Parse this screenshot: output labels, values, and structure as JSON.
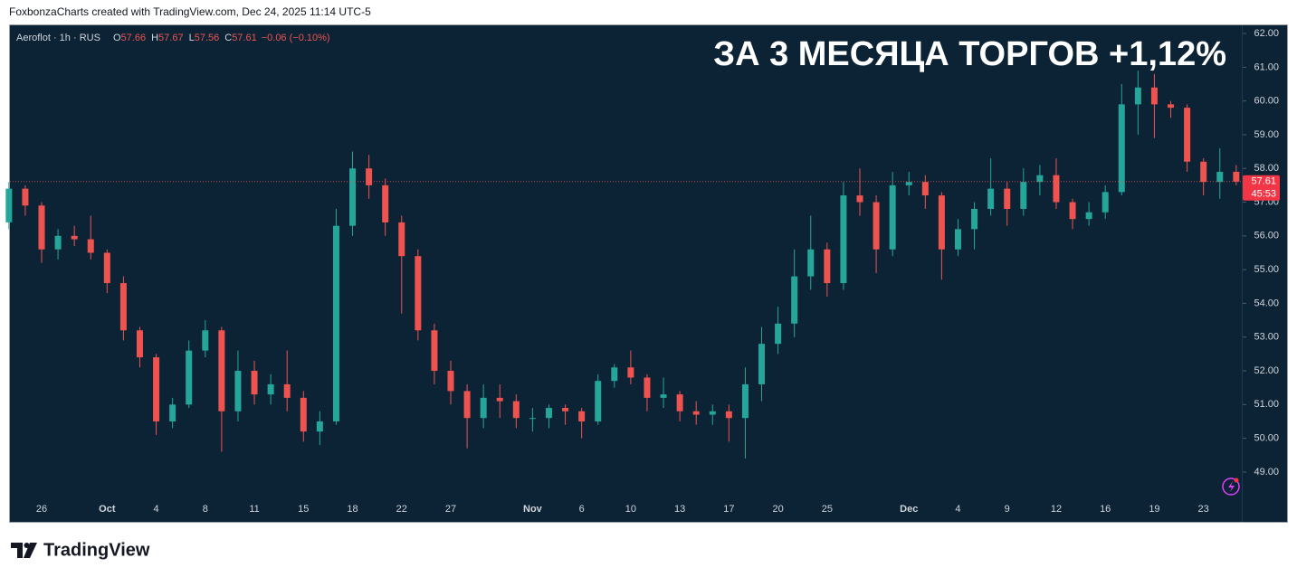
{
  "watermark": "FoxbonzaCharts created with TradingView.com, Dec 24, 2025 11:14 UTC-5",
  "brand": "TradingView",
  "chart_data": {
    "type": "candlestick",
    "title": "ЗА 3 МЕСЯЦА ТОРГОВ +1,12%",
    "symbol": "Aeroflot · 1h · RUS",
    "ohlc_legend": [
      {
        "key": "O",
        "value": 57.66
      },
      {
        "key": "H",
        "value": 57.67
      },
      {
        "key": "L",
        "value": 57.56
      },
      {
        "key": "C",
        "value": 57.61
      }
    ],
    "change": "−0.06 (−0.10%)",
    "last_price": 57.61,
    "countdown": "45:53",
    "up_color": "#26a69a",
    "down_color": "#ef5350",
    "categories": [
      null,
      null,
      "26",
      null,
      null,
      null,
      "Oct",
      null,
      null,
      "4",
      null,
      null,
      "8",
      null,
      null,
      "11",
      null,
      null,
      "15",
      null,
      null,
      "18",
      null,
      null,
      "22",
      null,
      null,
      "27",
      null,
      null,
      null,
      null,
      "Nov",
      null,
      null,
      "6",
      null,
      null,
      "10",
      null,
      null,
      "13",
      null,
      null,
      "17",
      null,
      null,
      "20",
      null,
      null,
      "25",
      null,
      null,
      null,
      null,
      "Dec",
      null,
      null,
      "4",
      null,
      null,
      "9",
      null,
      null,
      "12",
      null,
      null,
      "16",
      null,
      null,
      "19",
      null,
      null,
      "23",
      null,
      null
    ],
    "open": [
      56.4,
      57.4,
      56.9,
      55.6,
      56.0,
      55.9,
      55.5,
      54.6,
      53.2,
      52.4,
      50.5,
      51.0,
      52.6,
      53.2,
      50.8,
      52.0,
      51.3,
      51.6,
      51.2,
      50.2,
      50.5,
      56.3,
      58.0,
      57.5,
      56.4,
      55.4,
      53.2,
      52.0,
      51.4,
      50.6,
      51.2,
      51.1,
      50.6,
      50.6,
      50.9,
      50.8,
      50.5,
      51.7,
      52.1,
      51.8,
      51.2,
      51.3,
      50.8,
      50.7,
      50.8,
      50.6,
      51.6,
      52.8,
      53.4,
      54.8,
      55.6,
      54.6,
      57.2,
      57.0,
      55.6,
      57.5,
      57.6,
      57.2,
      55.6,
      56.2,
      56.8,
      57.4,
      56.8,
      57.6,
      57.8,
      57.0,
      56.5,
      56.7,
      57.3,
      59.9,
      60.4,
      59.9,
      59.8,
      58.2,
      57.6,
      57.9
    ],
    "high": [
      57.6,
      57.5,
      57.0,
      56.2,
      56.3,
      56.6,
      55.6,
      54.8,
      53.3,
      52.5,
      51.2,
      52.9,
      53.5,
      53.3,
      52.6,
      52.3,
      51.9,
      52.6,
      51.4,
      50.8,
      56.8,
      58.5,
      58.4,
      57.7,
      56.6,
      55.6,
      53.4,
      52.3,
      51.6,
      51.6,
      51.6,
      51.3,
      50.9,
      51.0,
      51.0,
      50.9,
      51.9,
      52.2,
      52.6,
      51.9,
      51.8,
      51.4,
      51.1,
      51.0,
      51.0,
      52.1,
      53.3,
      53.9,
      55.6,
      56.6,
      55.8,
      57.6,
      58.0,
      57.2,
      57.9,
      57.9,
      57.8,
      57.3,
      56.5,
      57.0,
      58.3,
      57.6,
      58.0,
      58.1,
      58.3,
      57.1,
      57.0,
      57.5,
      60.5,
      60.9,
      60.8,
      60.0,
      59.9,
      58.3,
      58.6,
      58.1
    ],
    "low": [
      56.2,
      56.6,
      55.2,
      55.3,
      55.7,
      55.3,
      54.3,
      52.9,
      52.1,
      50.1,
      50.3,
      50.9,
      52.4,
      49.6,
      50.5,
      51.0,
      51.0,
      50.8,
      49.9,
      49.8,
      50.4,
      56.0,
      57.1,
      56.0,
      53.7,
      52.9,
      51.6,
      51.0,
      49.7,
      50.3,
      50.6,
      50.3,
      50.2,
      50.3,
      50.4,
      50.0,
      50.4,
      51.5,
      51.6,
      50.8,
      50.9,
      50.5,
      50.4,
      50.4,
      49.9,
      49.4,
      51.1,
      52.5,
      53.0,
      54.4,
      54.2,
      54.4,
      56.6,
      54.9,
      55.4,
      57.2,
      56.8,
      54.7,
      55.4,
      55.6,
      56.6,
      56.3,
      56.6,
      57.2,
      56.8,
      56.2,
      56.3,
      56.5,
      57.2,
      59.0,
      58.9,
      59.5,
      57.9,
      57.2,
      57.1,
      57.5
    ],
    "close": [
      57.4,
      56.9,
      55.6,
      56.0,
      55.9,
      55.5,
      54.6,
      53.2,
      52.4,
      50.5,
      51.0,
      52.6,
      53.2,
      50.8,
      52.0,
      51.3,
      51.6,
      51.2,
      50.2,
      50.5,
      56.3,
      58.0,
      57.5,
      56.4,
      55.4,
      53.2,
      52.0,
      51.4,
      50.6,
      51.2,
      51.1,
      50.6,
      50.6,
      50.9,
      50.8,
      50.5,
      51.7,
      52.1,
      51.8,
      51.2,
      51.3,
      50.8,
      50.7,
      50.8,
      50.6,
      51.6,
      52.8,
      53.4,
      54.8,
      55.6,
      54.6,
      57.2,
      57.0,
      55.6,
      57.5,
      57.6,
      57.2,
      55.6,
      56.2,
      56.8,
      57.4,
      56.8,
      57.6,
      57.8,
      57.0,
      56.5,
      56.7,
      57.3,
      59.9,
      60.4,
      59.9,
      59.8,
      58.2,
      57.6,
      57.9,
      57.61
    ],
    "ylim": [
      48.3,
      62.27
    ],
    "yticks": [
      {
        "value": 49,
        "label": "49.00"
      },
      {
        "value": 50,
        "label": "50.00"
      },
      {
        "value": 51,
        "label": "51.00"
      },
      {
        "value": 52,
        "label": "52.00"
      },
      {
        "value": 53,
        "label": "53.00"
      },
      {
        "value": 54,
        "label": "54.00"
      },
      {
        "value": 55,
        "label": "55.00"
      },
      {
        "value": 56,
        "label": "56.00"
      },
      {
        "value": 57,
        "label": "57.00"
      },
      {
        "value": 58,
        "label": "58.00"
      },
      {
        "value": 59,
        "label": "59.00"
      },
      {
        "value": 60,
        "label": "60.00"
      },
      {
        "value": 61,
        "label": "61.00"
      },
      {
        "value": 62,
        "label": "62.00"
      }
    ],
    "grid": false
  }
}
